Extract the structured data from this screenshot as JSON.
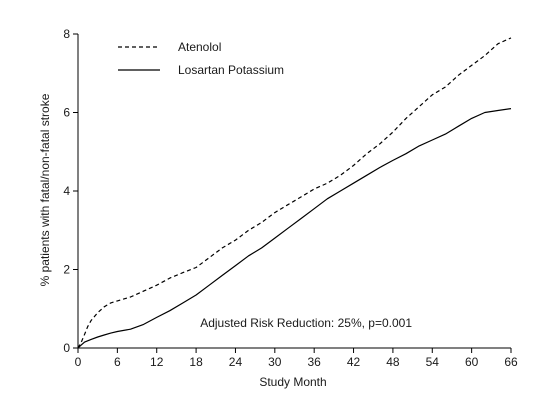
{
  "chart_data": {
    "type": "line",
    "xlabel": "Study Month",
    "ylabel": "% patients with fatal/non-fatal stroke",
    "xlim": [
      0,
      66
    ],
    "ylim": [
      0,
      8
    ],
    "x_ticks": [
      "0",
      "6",
      "12",
      "18",
      "24",
      "30",
      "36",
      "42",
      "48",
      "54",
      "60",
      "66"
    ],
    "y_ticks": [
      "0",
      "2",
      "4",
      "6",
      "8"
    ],
    "grid": false,
    "legend_position": "top-left",
    "annotation": "Adjusted Risk Reduction: 25%, p=0.001",
    "series": [
      {
        "name": "Atenolol",
        "style": "dashed",
        "color": "#000000",
        "x": [
          0,
          0.5,
          1,
          1.5,
          2,
          3,
          4,
          5,
          6,
          8,
          10,
          12,
          14,
          16,
          18,
          20,
          22,
          24,
          26,
          28,
          30,
          32,
          34,
          36,
          38,
          40,
          42,
          44,
          46,
          48,
          50,
          52,
          54,
          56,
          58,
          60,
          62,
          64,
          66
        ],
        "y": [
          0,
          0.15,
          0.35,
          0.55,
          0.7,
          0.9,
          1.05,
          1.15,
          1.2,
          1.3,
          1.45,
          1.6,
          1.78,
          1.92,
          2.05,
          2.3,
          2.55,
          2.75,
          3.0,
          3.2,
          3.45,
          3.65,
          3.85,
          4.05,
          4.2,
          4.4,
          4.65,
          4.95,
          5.2,
          5.5,
          5.85,
          6.15,
          6.45,
          6.65,
          6.95,
          7.2,
          7.45,
          7.75,
          7.9
        ]
      },
      {
        "name": "Losartan Potassium",
        "style": "solid",
        "color": "#000000",
        "x": [
          0,
          0.5,
          1,
          2,
          3,
          4,
          5,
          6,
          8,
          10,
          12,
          14,
          16,
          18,
          20,
          22,
          24,
          26,
          28,
          30,
          32,
          34,
          36,
          38,
          40,
          42,
          44,
          46,
          48,
          50,
          52,
          54,
          56,
          58,
          60,
          62,
          64,
          66
        ],
        "y": [
          0,
          0.08,
          0.15,
          0.22,
          0.28,
          0.33,
          0.38,
          0.42,
          0.48,
          0.6,
          0.78,
          0.95,
          1.15,
          1.35,
          1.6,
          1.85,
          2.1,
          2.35,
          2.55,
          2.8,
          3.05,
          3.3,
          3.55,
          3.8,
          4.0,
          4.2,
          4.4,
          4.6,
          4.78,
          4.95,
          5.15,
          5.3,
          5.45,
          5.65,
          5.85,
          6.0,
          6.05,
          6.1
        ]
      }
    ]
  }
}
